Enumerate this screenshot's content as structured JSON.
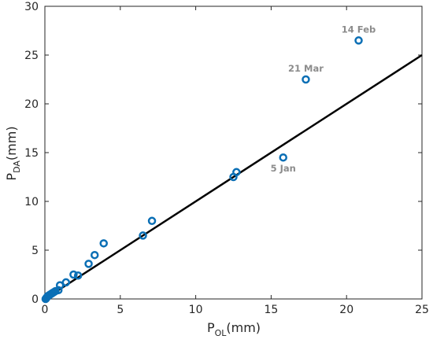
{
  "chart_data": {
    "type": "scatter",
    "title": "",
    "xlabel": {
      "main": "P",
      "sub": "OL",
      "unit": "(mm)"
    },
    "ylabel": {
      "main": "P",
      "sub": "DA",
      "unit": "(mm)"
    },
    "xlim": [
      0,
      25
    ],
    "ylim": [
      0,
      30
    ],
    "xticks": [
      "0",
      "5",
      "10",
      "15",
      "20",
      "25"
    ],
    "yticks": [
      "0",
      "5",
      "10",
      "15",
      "20",
      "25",
      "30"
    ],
    "grid": false,
    "marker_color": "#0b6fb5",
    "line_color": "#000000",
    "points": [
      [
        0.05,
        0.0
      ],
      [
        0.1,
        0.1
      ],
      [
        0.15,
        0.2
      ],
      [
        0.2,
        0.3
      ],
      [
        0.3,
        0.4
      ],
      [
        0.4,
        0.5
      ],
      [
        0.5,
        0.6
      ],
      [
        0.6,
        0.7
      ],
      [
        0.7,
        0.8
      ],
      [
        0.9,
        0.9
      ],
      [
        1.0,
        1.4
      ],
      [
        1.4,
        1.7
      ],
      [
        1.9,
        2.5
      ],
      [
        2.2,
        2.4
      ],
      [
        2.9,
        3.6
      ],
      [
        3.3,
        4.5
      ],
      [
        3.9,
        5.7
      ],
      [
        6.5,
        6.5
      ],
      [
        7.1,
        8.0
      ],
      [
        12.5,
        12.5
      ],
      [
        12.7,
        13.0
      ],
      [
        15.8,
        14.5
      ],
      [
        17.3,
        22.5
      ],
      [
        20.8,
        26.5
      ]
    ],
    "reference_line": {
      "x": [
        0,
        25
      ],
      "y": [
        0,
        25
      ]
    },
    "annotations": [
      {
        "text": "14 Feb",
        "x": 20.8,
        "y": 26.5,
        "position": "above"
      },
      {
        "text": "21 Mar",
        "x": 17.3,
        "y": 22.5,
        "position": "above"
      },
      {
        "text": "5 Jan",
        "x": 15.8,
        "y": 14.5,
        "position": "below"
      }
    ]
  }
}
